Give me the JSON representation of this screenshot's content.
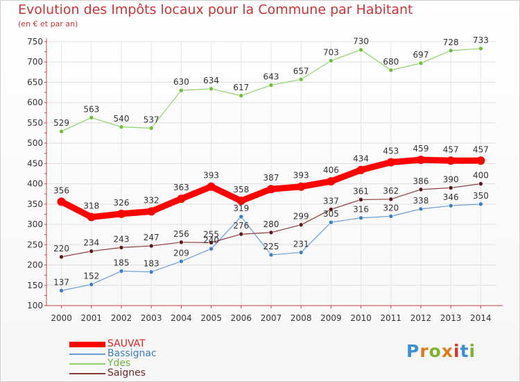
{
  "header": {
    "title": "Evolution des Impôts locaux pour la Commune par Habitant",
    "subtitle": "(en € et par an)"
  },
  "logo": {
    "letters": [
      "P",
      "r",
      "o",
      "x",
      "i",
      "t",
      "i"
    ],
    "colors": [
      "#3a8fd6",
      "#e07a1f",
      "#7fb32c",
      "#e07a1f",
      "#d9342b",
      "#3a8fd6",
      "#7fb32c"
    ]
  },
  "chart_data": {
    "type": "line",
    "x": [
      2000,
      2001,
      2002,
      2003,
      2004,
      2005,
      2006,
      2007,
      2008,
      2009,
      2010,
      2011,
      2012,
      2013,
      2014
    ],
    "ylim": [
      100,
      750
    ],
    "yticks": [
      100,
      150,
      200,
      250,
      300,
      350,
      400,
      450,
      500,
      550,
      600,
      650,
      700,
      750
    ],
    "grid": true,
    "legend_position": "bottom-left",
    "series": [
      {
        "name": "SAUVAT",
        "color": "#ff0000",
        "values": [
          356,
          318,
          326,
          332,
          363,
          393,
          358,
          387,
          393,
          406,
          434,
          453,
          459,
          457,
          457
        ]
      },
      {
        "name": "Bassignac",
        "color": "#6b9ed6",
        "point_color": "#3d7fc7",
        "values": [
          137,
          152,
          185,
          183,
          209,
          240,
          319,
          225,
          231,
          305,
          316,
          320,
          338,
          346,
          350
        ]
      },
      {
        "name": "Ydes",
        "color": "#8fd46a",
        "point_color": "#6cbf3a",
        "values": [
          529,
          563,
          540,
          537,
          630,
          634,
          617,
          643,
          657,
          703,
          730,
          680,
          697,
          728,
          733
        ]
      },
      {
        "name": "Saignes",
        "color": "#8b3a3a",
        "point_color": "#5c1a1a",
        "values": [
          220,
          234,
          243,
          247,
          256,
          255,
          276,
          280,
          299,
          337,
          361,
          362,
          386,
          390,
          400
        ]
      }
    ],
    "data_labels": [
      [
        "356",
        "318",
        "326",
        "332",
        "363",
        "393",
        "358",
        "387",
        "393",
        "406",
        "434",
        "453",
        "459",
        "457",
        "457"
      ],
      [
        "137",
        "152",
        "185",
        "183",
        "209",
        "240",
        "319",
        "225",
        "231",
        "305",
        "316",
        "320",
        "338",
        "346",
        "350"
      ],
      [
        "529",
        "563",
        "540",
        "537",
        "630",
        "634",
        "617",
        "643",
        "657",
        "703",
        "730",
        "680",
        "697",
        "728",
        "733"
      ],
      [
        "220",
        "234",
        "243",
        "247",
        "256",
        "255",
        "276",
        "280",
        "299",
        "337",
        "361",
        "362",
        "386",
        "390",
        "400"
      ]
    ]
  }
}
